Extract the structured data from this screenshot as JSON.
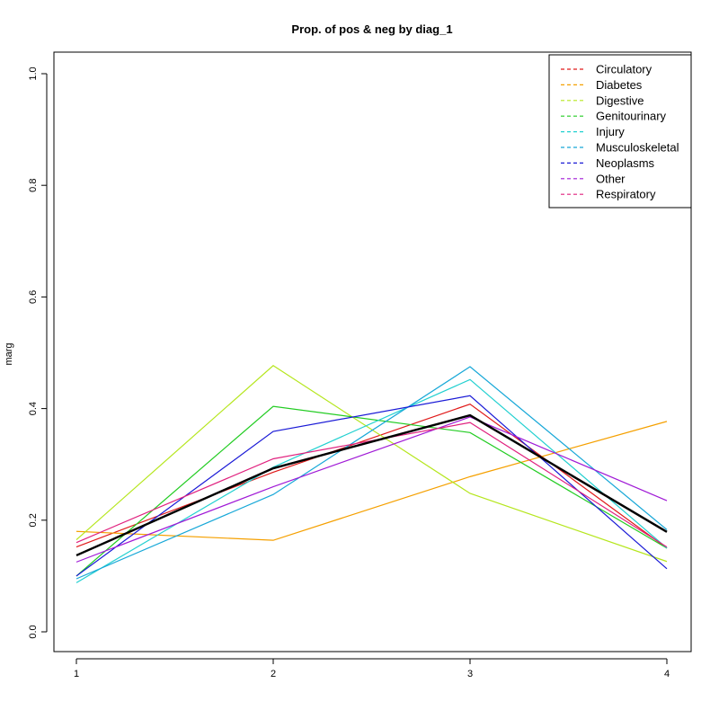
{
  "chart_data": {
    "type": "line",
    "title": "Prop. of pos & neg by diag_1",
    "xlabel": "",
    "ylabel": "marg",
    "x": [
      1,
      2,
      3,
      4
    ],
    "x_tick_labels": [
      "1",
      "2",
      "3",
      "4"
    ],
    "ylim": [
      0.0,
      1.0
    ],
    "y_ticks": [
      0.0,
      0.2,
      0.4,
      0.6,
      0.8,
      1.0
    ],
    "y_tick_labels": [
      "0.0",
      "0.2",
      "0.4",
      "0.6",
      "0.8",
      "1.0"
    ],
    "legend_position": "top-right",
    "grid": false,
    "series": [
      {
        "name": "Circulatory",
        "color": "#e01919",
        "values": [
          0.152,
          0.286,
          0.408,
          0.15
        ]
      },
      {
        "name": "Diabetes",
        "color": "#f5a000",
        "values": [
          0.18,
          0.164,
          0.278,
          0.377
        ]
      },
      {
        "name": "Digestive",
        "color": "#b5e61d",
        "values": [
          0.165,
          0.477,
          0.248,
          0.126
        ]
      },
      {
        "name": "Genitourinary",
        "color": "#22cc22",
        "values": [
          0.1,
          0.404,
          0.357,
          0.15
        ]
      },
      {
        "name": "Injury",
        "color": "#22d0d0",
        "values": [
          0.088,
          0.295,
          0.452,
          0.15
        ]
      },
      {
        "name": "Musculoskeletal",
        "color": "#18a8d8",
        "values": [
          0.095,
          0.246,
          0.475,
          0.183
        ]
      },
      {
        "name": "Neoplasms",
        "color": "#1a1ad6",
        "values": [
          0.1,
          0.359,
          0.423,
          0.113
        ]
      },
      {
        "name": "Other",
        "color": "#a01ad6",
        "values": [
          0.125,
          0.26,
          0.385,
          0.235
        ]
      },
      {
        "name": "Respiratory",
        "color": "#e0207e",
        "values": [
          0.16,
          0.31,
          0.375,
          0.152
        ]
      }
    ],
    "overall": {
      "color": "#000000",
      "values": [
        0.137,
        0.293,
        0.388,
        0.179
      ]
    }
  }
}
